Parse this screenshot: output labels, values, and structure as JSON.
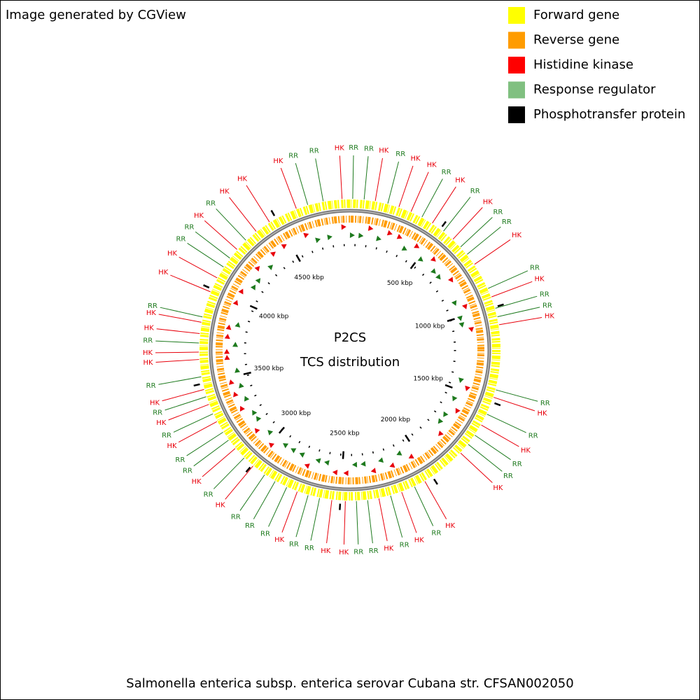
{
  "header": {
    "title": "Image generated by CGView"
  },
  "legend": [
    {
      "label": "Forward gene",
      "color": "#ffff00"
    },
    {
      "label": "Reverse gene",
      "color": "#ff9c00"
    },
    {
      "label": "Histidine kinase",
      "color": "#ff0000"
    },
    {
      "label": "Response regulator",
      "color": "#80c080"
    },
    {
      "label": "Phosphotransfer protein",
      "color": "#000000"
    }
  ],
  "map": {
    "title": "P2CS",
    "subtitle": "TCS distribution",
    "genome_length_kbp": 4900,
    "ticks": [
      {
        "value": 500,
        "label": "500 kbp"
      },
      {
        "value": 1000,
        "label": "1000 kbp"
      },
      {
        "value": 1500,
        "label": "1500 kbp"
      },
      {
        "value": 2000,
        "label": "2000 kbp"
      },
      {
        "value": 2500,
        "label": "2500 kbp"
      },
      {
        "value": 3000,
        "label": "3000 kbp"
      },
      {
        "value": 3500,
        "label": "3500 kbp"
      },
      {
        "value": 4000,
        "label": "4000 kbp"
      },
      {
        "value": 4500,
        "label": "4500 kbp"
      }
    ],
    "feature_colors": {
      "HK": "#e8000b",
      "RR": "#1e7a1e"
    },
    "features": [
      {
        "label": "HK",
        "position_kbp": 4859
      },
      {
        "label": "RR",
        "position_kbp": 14
      },
      {
        "label": "RR",
        "position_kbp": 73
      },
      {
        "label": "HK",
        "position_kbp": 131
      },
      {
        "label": "RR",
        "position_kbp": 197
      },
      {
        "label": "HK",
        "position_kbp": 257
      },
      {
        "label": "HK",
        "position_kbp": 324
      },
      {
        "label": "RR",
        "position_kbp": 387
      },
      {
        "label": "HK",
        "position_kbp": 449
      },
      {
        "label": "RR",
        "position_kbp": 520
      },
      {
        "label": "HK",
        "position_kbp": 584
      },
      {
        "label": "RR",
        "position_kbp": 640
      },
      {
        "label": "RR",
        "position_kbp": 691
      },
      {
        "label": "HK",
        "position_kbp": 755
      },
      {
        "label": "RR",
        "position_kbp": 898
      },
      {
        "label": "HK",
        "position_kbp": 945
      },
      {
        "label": "RR",
        "position_kbp": 1007
      },
      {
        "label": "RR",
        "position_kbp": 1052
      },
      {
        "label": "HK",
        "position_kbp": 1094
      },
      {
        "label": "RR",
        "position_kbp": 1433
      },
      {
        "label": "HK",
        "position_kbp": 1473
      },
      {
        "label": "RR",
        "position_kbp": 1567
      },
      {
        "label": "HK",
        "position_kbp": 1630
      },
      {
        "label": "RR",
        "position_kbp": 1692
      },
      {
        "label": "RR",
        "position_kbp": 1750
      },
      {
        "label": "HK",
        "position_kbp": 1810
      },
      {
        "label": "HK",
        "position_kbp": 2046
      },
      {
        "label": "RR",
        "position_kbp": 2106
      },
      {
        "label": "HK",
        "position_kbp": 2178
      },
      {
        "label": "RR",
        "position_kbp": 2238
      },
      {
        "label": "HK",
        "position_kbp": 2300
      },
      {
        "label": "RR",
        "position_kbp": 2359
      },
      {
        "label": "RR",
        "position_kbp": 2417
      },
      {
        "label": "HK",
        "position_kbp": 2474
      },
      {
        "label": "HK",
        "position_kbp": 2544
      },
      {
        "label": "RR",
        "position_kbp": 2608
      },
      {
        "label": "RR",
        "position_kbp": 2669
      },
      {
        "label": "HK",
        "position_kbp": 2728
      },
      {
        "label": "RR",
        "position_kbp": 2787
      },
      {
        "label": "RR",
        "position_kbp": 2854
      },
      {
        "label": "RR",
        "position_kbp": 2918
      },
      {
        "label": "HK",
        "position_kbp": 2993
      },
      {
        "label": "RR",
        "position_kbp": 3055
      },
      {
        "label": "HK",
        "position_kbp": 3122
      },
      {
        "label": "RR",
        "position_kbp": 3177
      },
      {
        "label": "RR",
        "position_kbp": 3227
      },
      {
        "label": "HK",
        "position_kbp": 3290
      },
      {
        "label": "RR",
        "position_kbp": 3335
      },
      {
        "label": "HK",
        "position_kbp": 3388
      },
      {
        "label": "RR",
        "position_kbp": 3430
      },
      {
        "label": "HK",
        "position_kbp": 3469
      },
      {
        "label": "RR",
        "position_kbp": 3536
      },
      {
        "label": "HK",
        "position_kbp": 3626
      },
      {
        "label": "HK",
        "position_kbp": 3664
      },
      {
        "label": "RR",
        "position_kbp": 3711
      },
      {
        "label": "HK",
        "position_kbp": 3760
      },
      {
        "label": "HK",
        "position_kbp": 3819
      },
      {
        "label": "RR",
        "position_kbp": 3847
      },
      {
        "label": "HK",
        "position_kbp": 3983
      },
      {
        "label": "HK",
        "position_kbp": 4063
      },
      {
        "label": "RR",
        "position_kbp": 4128
      },
      {
        "label": "RR",
        "position_kbp": 4184
      },
      {
        "label": "HK",
        "position_kbp": 4242
      },
      {
        "label": "RR",
        "position_kbp": 4308
      },
      {
        "label": "HK",
        "position_kbp": 4378
      },
      {
        "label": "HK",
        "position_kbp": 4462
      },
      {
        "label": "HK",
        "position_kbp": 4617
      },
      {
        "label": "RR",
        "position_kbp": 4679
      },
      {
        "label": "RR",
        "position_kbp": 4761
      }
    ]
  },
  "footer": {
    "caption": "Salmonella enterica subsp. enterica serovar Cubana str. CFSAN002050"
  }
}
